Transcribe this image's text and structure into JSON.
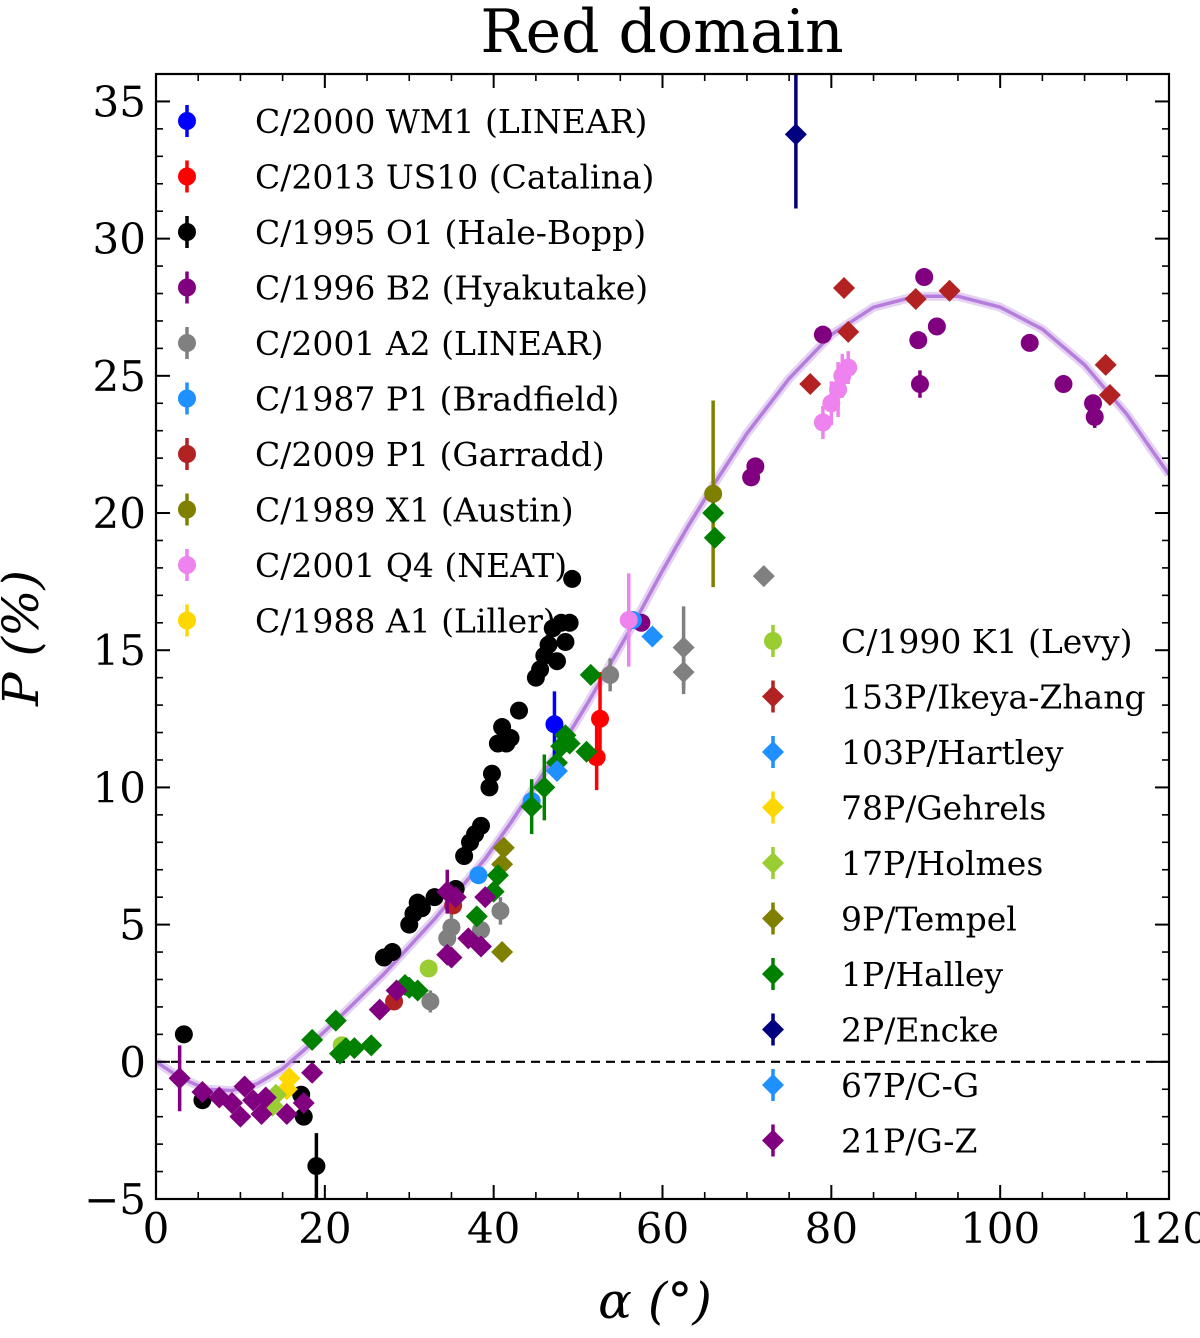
{
  "chart_data": {
    "type": "scatter",
    "title": "Red domain",
    "xlabel": "α (°)",
    "ylabel": "P (%)",
    "xlim": [
      0,
      120
    ],
    "ylim": [
      -5,
      36
    ],
    "xticks": [
      0,
      20,
      40,
      60,
      80,
      100,
      120
    ],
    "yticks": [
      -5,
      0,
      5,
      10,
      15,
      20,
      25,
      30,
      35
    ],
    "zero_line": {
      "y": 0,
      "style": "dashed",
      "color": "#000000"
    },
    "fit_curve": {
      "name": "fit",
      "color": "#b57edc",
      "points": [
        [
          0,
          0
        ],
        [
          3,
          -0.6
        ],
        [
          6,
          -1.0
        ],
        [
          9,
          -1.05
        ],
        [
          12,
          -0.8
        ],
        [
          15,
          -0.25
        ],
        [
          18,
          0.55
        ],
        [
          21,
          1.4
        ],
        [
          24,
          2.3
        ],
        [
          27,
          3.2
        ],
        [
          30,
          4.2
        ],
        [
          33,
          5.2
        ],
        [
          36,
          6.3
        ],
        [
          39,
          7.4
        ],
        [
          42,
          8.7
        ],
        [
          45,
          10.1
        ],
        [
          48,
          11.5
        ],
        [
          51,
          13.0
        ],
        [
          54,
          14.6
        ],
        [
          57,
          16.2
        ],
        [
          60,
          17.9
        ],
        [
          63,
          19.5
        ],
        [
          66,
          21.0
        ],
        [
          70,
          22.9
        ],
        [
          75,
          24.9
        ],
        [
          80,
          26.5
        ],
        [
          85,
          27.5
        ],
        [
          90,
          27.9
        ],
        [
          95,
          27.9
        ],
        [
          100,
          27.5
        ],
        [
          105,
          26.7
        ],
        [
          110,
          25.4
        ],
        [
          115,
          23.6
        ],
        [
          120,
          21.4
        ]
      ]
    },
    "series": [
      {
        "name": "C/2000 WM1 (LINEAR)",
        "marker": "circle",
        "color": "#0000ff",
        "points": [
          [
            47.2,
            12.3,
            1.2
          ]
        ]
      },
      {
        "name": "C/2013 US10 (Catalina)",
        "marker": "circle",
        "color": "#ff0000",
        "points": [
          [
            52.2,
            11.1,
            1.2
          ],
          [
            52.6,
            12.5,
            1.7
          ]
        ]
      },
      {
        "name": "C/1995 O1 (Hale-Bopp)",
        "marker": "circle",
        "color": "#000000",
        "points": [
          [
            3.3,
            1.0,
            0
          ],
          [
            5.5,
            -1.4,
            0
          ],
          [
            17.2,
            -1.2,
            0
          ],
          [
            17.5,
            -2.0,
            0
          ],
          [
            19.0,
            -3.8,
            1.2
          ],
          [
            27.0,
            3.8,
            0
          ],
          [
            28.0,
            4.0,
            0
          ],
          [
            30.0,
            5.0,
            0
          ],
          [
            30.5,
            5.4,
            0
          ],
          [
            31.0,
            5.8,
            0
          ],
          [
            31.5,
            5.6,
            0
          ],
          [
            33.0,
            6.0,
            0
          ],
          [
            35.5,
            6.3,
            0
          ],
          [
            36.5,
            7.5,
            0
          ],
          [
            37.2,
            8.0,
            0
          ],
          [
            37.8,
            8.3,
            0
          ],
          [
            38.5,
            8.6,
            0
          ],
          [
            39.5,
            10.0,
            0
          ],
          [
            39.8,
            10.5,
            0
          ],
          [
            40.5,
            11.6,
            0
          ],
          [
            41.0,
            12.2,
            0
          ],
          [
            41.5,
            11.6,
            0
          ],
          [
            42.0,
            11.8,
            0
          ],
          [
            43.0,
            12.8,
            0
          ],
          [
            45.0,
            14.0,
            0
          ],
          [
            45.5,
            14.3,
            0
          ],
          [
            46.0,
            14.8,
            0
          ],
          [
            46.5,
            15.2,
            0
          ],
          [
            47.0,
            15.8,
            0
          ],
          [
            47.5,
            14.6,
            0
          ],
          [
            48.0,
            16.0,
            0
          ],
          [
            48.5,
            15.3,
            0
          ],
          [
            49.0,
            16.0,
            0
          ],
          [
            49.3,
            17.6,
            0
          ]
        ]
      },
      {
        "name": "C/1996 B2 (Hyakutake)",
        "marker": "circle",
        "color": "#800080",
        "points": [
          [
            57.5,
            16.0,
            0
          ],
          [
            70.5,
            21.3,
            0
          ],
          [
            71.0,
            21.7,
            0
          ],
          [
            79.0,
            26.5,
            0
          ],
          [
            90.3,
            26.3,
            0
          ],
          [
            90.5,
            24.7,
            0.5
          ],
          [
            91.0,
            28.6,
            0
          ],
          [
            92.5,
            26.8,
            0
          ],
          [
            103.5,
            26.2,
            0
          ],
          [
            107.5,
            24.7,
            0
          ],
          [
            111.0,
            24.0,
            0
          ],
          [
            111.2,
            23.5,
            0.4
          ]
        ]
      },
      {
        "name": "C/2001 A2 (LINEAR)",
        "marker": "circle",
        "color": "#808080",
        "points": [
          [
            32.5,
            2.2,
            0.4
          ],
          [
            34.5,
            4.5,
            0.6
          ],
          [
            35.0,
            4.9,
            0.6
          ],
          [
            40.8,
            5.5,
            0.5
          ],
          [
            38.5,
            4.8,
            0.6
          ],
          [
            53.8,
            14.1,
            0.6
          ]
        ]
      },
      {
        "name": "C/1987 P1 (Bradfield)",
        "marker": "circle",
        "color": "#1e90ff",
        "points": [
          [
            44.5,
            9.5,
            0
          ],
          [
            38.2,
            6.8,
            0
          ],
          [
            56.5,
            16.1,
            0
          ]
        ]
      },
      {
        "name": "C/2009 P1 (Garradd)",
        "marker": "circle",
        "color": "#b22222",
        "points": [
          [
            28.2,
            2.2,
            0
          ],
          [
            35.2,
            5.7,
            0
          ]
        ]
      },
      {
        "name": "C/1989 X1 (Austin)",
        "marker": "circle",
        "color": "#808000",
        "points": [
          [
            66.0,
            20.7,
            3.4
          ]
        ]
      },
      {
        "name": "C/2001 Q4 (NEAT)",
        "marker": "circle",
        "color": "#ee82ee",
        "points": [
          [
            56.0,
            16.1,
            1.7
          ],
          [
            79.0,
            23.3,
            0.6
          ],
          [
            80.0,
            24.0,
            0.8
          ],
          [
            80.8,
            24.5,
            1.0
          ],
          [
            81.3,
            25.0,
            0.8
          ],
          [
            82.0,
            25.3,
            0.6
          ]
        ]
      },
      {
        "name": "C/1988 A1 (Liller)",
        "marker": "circle",
        "color": "#ffd700",
        "points": [
          [
            48.5,
            11.7,
            0
          ]
        ]
      },
      {
        "name": "C/1990 K1 (Levy)",
        "marker": "circle",
        "color": "#9acd32",
        "points": [
          [
            32.3,
            3.4,
            0
          ],
          [
            22.0,
            0.6,
            0
          ]
        ]
      },
      {
        "name": "153P/Ikeya-Zhang",
        "marker": "diamond",
        "color": "#b22222",
        "points": [
          [
            77.5,
            24.7,
            0
          ],
          [
            81.5,
            28.2,
            0
          ],
          [
            82.0,
            26.6,
            0
          ],
          [
            90.0,
            27.8,
            0
          ],
          [
            94.0,
            28.1,
            0
          ],
          [
            112.5,
            25.4,
            0
          ],
          [
            113.0,
            24.3,
            0
          ]
        ]
      },
      {
        "name": "103P/Hartley",
        "marker": "diamond",
        "color": "#1e90ff",
        "points": [
          [
            58.8,
            15.5,
            0
          ]
        ]
      },
      {
        "name": "78P/Gehrels",
        "marker": "diamond",
        "color": "#ffd700",
        "points": [
          [
            15.5,
            -1.0,
            0
          ],
          [
            15.8,
            -0.6,
            0
          ]
        ]
      },
      {
        "name": "17P/Holmes",
        "marker": "diamond",
        "color": "#9acd32",
        "points": [
          [
            13.8,
            -1.6,
            0
          ],
          [
            14.2,
            -1.2,
            0
          ]
        ]
      },
      {
        "name": "9P/Tempel",
        "marker": "diamond",
        "color": "#808000",
        "points": [
          [
            41.0,
            7.2,
            0
          ],
          [
            41.2,
            7.8,
            0
          ],
          [
            41.0,
            4.0,
            0
          ]
        ]
      },
      {
        "name": "1P/Halley",
        "marker": "diamond",
        "color": "#008000",
        "points": [
          [
            18.5,
            0.8,
            0
          ],
          [
            21.3,
            1.5,
            0
          ],
          [
            21.8,
            0.3,
            0
          ],
          [
            22.5,
            0.5,
            0
          ],
          [
            23.5,
            0.5,
            0
          ],
          [
            25.5,
            0.6,
            0
          ],
          [
            29.5,
            2.8,
            0
          ],
          [
            30.0,
            2.7,
            0
          ],
          [
            31.0,
            2.6,
            0
          ],
          [
            38.0,
            5.3,
            0
          ],
          [
            40.0,
            6.2,
            0
          ],
          [
            40.5,
            6.8,
            0
          ],
          [
            44.5,
            9.3,
            1.0
          ],
          [
            46.0,
            10.0,
            1.2
          ],
          [
            47.5,
            10.9,
            0
          ],
          [
            48.0,
            11.5,
            0
          ],
          [
            48.5,
            11.9,
            0
          ],
          [
            49.0,
            11.6,
            0
          ],
          [
            51.0,
            11.3,
            0
          ],
          [
            51.5,
            14.1,
            0
          ],
          [
            66.0,
            20.0,
            0
          ],
          [
            66.2,
            19.1,
            0
          ]
        ]
      },
      {
        "name": "2P/Encke",
        "marker": "diamond",
        "color": "#000080",
        "points": [
          [
            75.8,
            33.8,
            2.7
          ]
        ]
      },
      {
        "name": "67P/C-G",
        "marker": "diamond",
        "color": "#1e90ff",
        "points": [
          [
            47.5,
            10.6,
            0
          ]
        ]
      },
      {
        "name": "21P/G-Z",
        "marker": "diamond",
        "color": "#800080",
        "points": [
          [
            2.8,
            -0.6,
            1.2
          ],
          [
            5.5,
            -1.1,
            0
          ],
          [
            7.5,
            -1.3,
            0
          ],
          [
            9.0,
            -1.5,
            0
          ],
          [
            10.0,
            -2.0,
            0
          ],
          [
            10.5,
            -0.9,
            0
          ],
          [
            11.5,
            -1.4,
            0
          ],
          [
            12.5,
            -1.9,
            0
          ],
          [
            13.0,
            -1.3,
            0
          ],
          [
            15.5,
            -1.9,
            0
          ],
          [
            17.5,
            -1.5,
            0
          ],
          [
            18.5,
            -0.4,
            0
          ],
          [
            26.5,
            1.9,
            0
          ],
          [
            28.5,
            2.6,
            0
          ],
          [
            34.5,
            3.9,
            0
          ],
          [
            35.0,
            3.8,
            0
          ],
          [
            34.5,
            6.2,
            0.8
          ],
          [
            35.5,
            6.0,
            0
          ],
          [
            37.0,
            4.5,
            0
          ],
          [
            38.5,
            4.2,
            0
          ],
          [
            39.0,
            6.0,
            0
          ]
        ]
      },
      {
        "name": "C/2001 A2 (LINEAR) diamonds",
        "marker": "diamond",
        "color": "#808080",
        "points": [
          [
            62.5,
            15.1,
            1.5
          ],
          [
            62.5,
            14.2,
            0.8
          ],
          [
            72.0,
            17.7,
            0
          ]
        ],
        "legend": false
      }
    ],
    "legend": {
      "left_entries": [
        "C/2000 WM1 (LINEAR)",
        "C/2013 US10 (Catalina)",
        "C/1995 O1 (Hale-Bopp)",
        "C/1996 B2 (Hyakutake)",
        "C/2001 A2 (LINEAR)",
        "C/1987 P1 (Bradfield)",
        "C/2009 P1 (Garradd)",
        "C/1989 X1 (Austin)",
        "C/2001 Q4 (NEAT)",
        "C/1988 A1 (Liller)"
      ],
      "right_entries": [
        "C/1990 K1 (Levy)",
        "153P/Ikeya-Zhang",
        "103P/Hartley",
        "78P/Gehrels",
        "17P/Holmes",
        "9P/Tempel",
        "1P/Halley",
        "2P/Encke",
        "67P/C-G",
        "21P/G-Z"
      ],
      "placement_left": "upper-left",
      "placement_right": "lower-right"
    }
  }
}
